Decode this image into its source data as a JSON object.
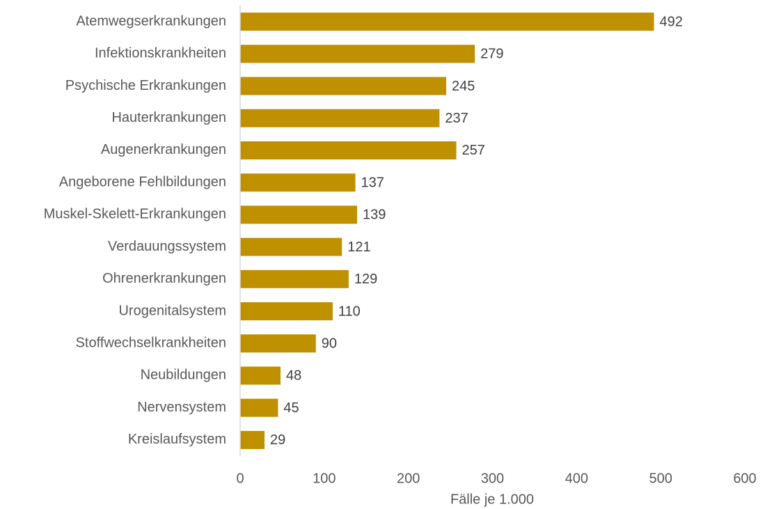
{
  "chart_data": {
    "type": "bar",
    "orientation": "horizontal",
    "categories": [
      "Atemwegserkrankungen",
      "Infektionskrankheiten",
      "Psychische Erkrankungen",
      "Hauterkrankungen",
      "Augenerkrankungen",
      "Angeborene Fehlbildungen",
      "Muskel-Skelett-Erkrankungen",
      "Verdauungssystem",
      "Ohrenerkrankungen",
      "Urogenitalsystem",
      "Stoffwechselkrankheiten",
      "Neubildungen",
      "Nervensystem",
      "Kreislaufsystem"
    ],
    "values": [
      492,
      279,
      245,
      237,
      257,
      137,
      139,
      121,
      129,
      110,
      90,
      48,
      45,
      29
    ],
    "color": "#bf9000",
    "xlabel": "Fälle je 1.000",
    "xlim": [
      0,
      600
    ],
    "xticks": [
      0,
      100,
      200,
      300,
      400,
      500,
      600
    ],
    "grid": false
  }
}
